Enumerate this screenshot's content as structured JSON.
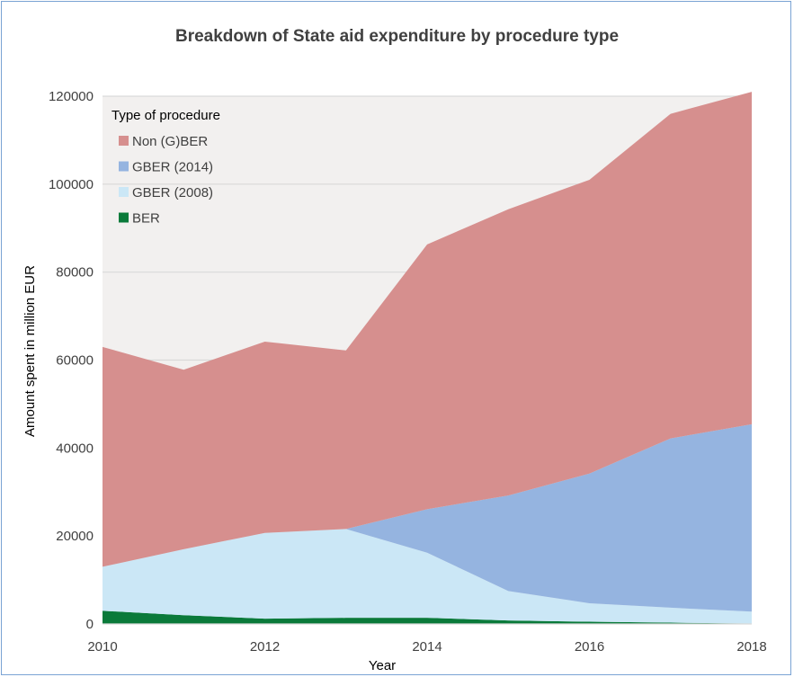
{
  "chart_data": {
    "type": "area",
    "stacked": true,
    "title": "Breakdown of State aid expenditure by procedure type",
    "xlabel": "Year",
    "ylabel": "Amount spent in million EUR",
    "x": [
      2010,
      2011,
      2012,
      2013,
      2014,
      2015,
      2016,
      2017,
      2018
    ],
    "xticks": [
      2010,
      2012,
      2014,
      2016,
      2018
    ],
    "ylim": [
      0,
      120000
    ],
    "yticks": [
      0,
      20000,
      40000,
      60000,
      80000,
      100000,
      120000
    ],
    "grid": true,
    "legend_title": "Type of procedure",
    "legend_position": "top-left",
    "series": [
      {
        "name": "BER",
        "color": "#0a7a3a",
        "values": [
          3000,
          2000,
          1200,
          1400,
          1400,
          800,
          500,
          300,
          100
        ]
      },
      {
        "name": "GBER (2008)",
        "color": "#cbe7f6",
        "values": [
          10000,
          15000,
          19500,
          20200,
          14800,
          6700,
          4200,
          3400,
          2700
        ]
      },
      {
        "name": "GBER (2014)",
        "color": "#95b4e0",
        "values": [
          0,
          0,
          0,
          0,
          9900,
          21700,
          29500,
          38500,
          42600
        ]
      },
      {
        "name": "Non (G)BER",
        "color": "#d68f8e",
        "values": [
          50000,
          40800,
          43500,
          40600,
          60200,
          65100,
          66800,
          73800,
          75600
        ]
      }
    ],
    "legend_order": [
      "Non (G)BER",
      "GBER (2014)",
      "GBER (2008)",
      "BER"
    ],
    "plot_background": "#f2f0ef",
    "gridline_color": "#d9d9d9"
  }
}
